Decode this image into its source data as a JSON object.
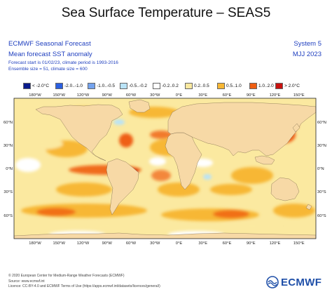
{
  "title": "Sea Surface Temperature – SEAS5",
  "header": {
    "org_title": "ECMWF Seasonal Forecast",
    "product": "Mean forecast SST anomaly",
    "meta_line1": "Forecast start is 01/02/23, climate period is 1993-2016",
    "meta_line2": "Ensemble size = 51, climate size = 600",
    "system": "System 5",
    "period": "MJJ 2023"
  },
  "legend": [
    {
      "label": "< -2.0°C",
      "color": "#0a1b8c"
    },
    {
      "label": "-2.0..-1.0",
      "color": "#2b5fe0"
    },
    {
      "label": "-1.0..-0.5",
      "color": "#74a3ee"
    },
    {
      "label": "-0.5..-0.2",
      "color": "#b9e3f7"
    },
    {
      "label": "-0.2..0.2",
      "color": "#ffffff"
    },
    {
      "label": "0.2..0.5",
      "color": "#fbe9a0"
    },
    {
      "label": "0.5..1.0",
      "color": "#f7b734"
    },
    {
      "label": "1.0..2.0",
      "color": "#ef5e12"
    },
    {
      "label": "> 2.0°C",
      "color": "#c9120f"
    }
  ],
  "map": {
    "lon_labels": [
      "180°W",
      "150°W",
      "120°W",
      "90°W",
      "60°W",
      "30°W",
      "0°E",
      "30°E",
      "60°E",
      "90°E",
      "120°E",
      "150°E"
    ],
    "lat_labels": [
      "60°N",
      "30°N",
      "0°N",
      "30°S",
      "60°S"
    ],
    "land_color": "#f7d9a6",
    "ocean_base_color": "#fbe9a0"
  },
  "footer": {
    "line1": "© 2020 European Center for Medium-Range Weather Forecasts (ECMWF)",
    "line2": "Source: www.ecmwf.int",
    "line3": "Licence: CC-BY-4.0 and ECMWF Terms of Use (https://apps.ecmwf.int/datasets/licences/general/)",
    "logo_text": "ECMWF"
  }
}
